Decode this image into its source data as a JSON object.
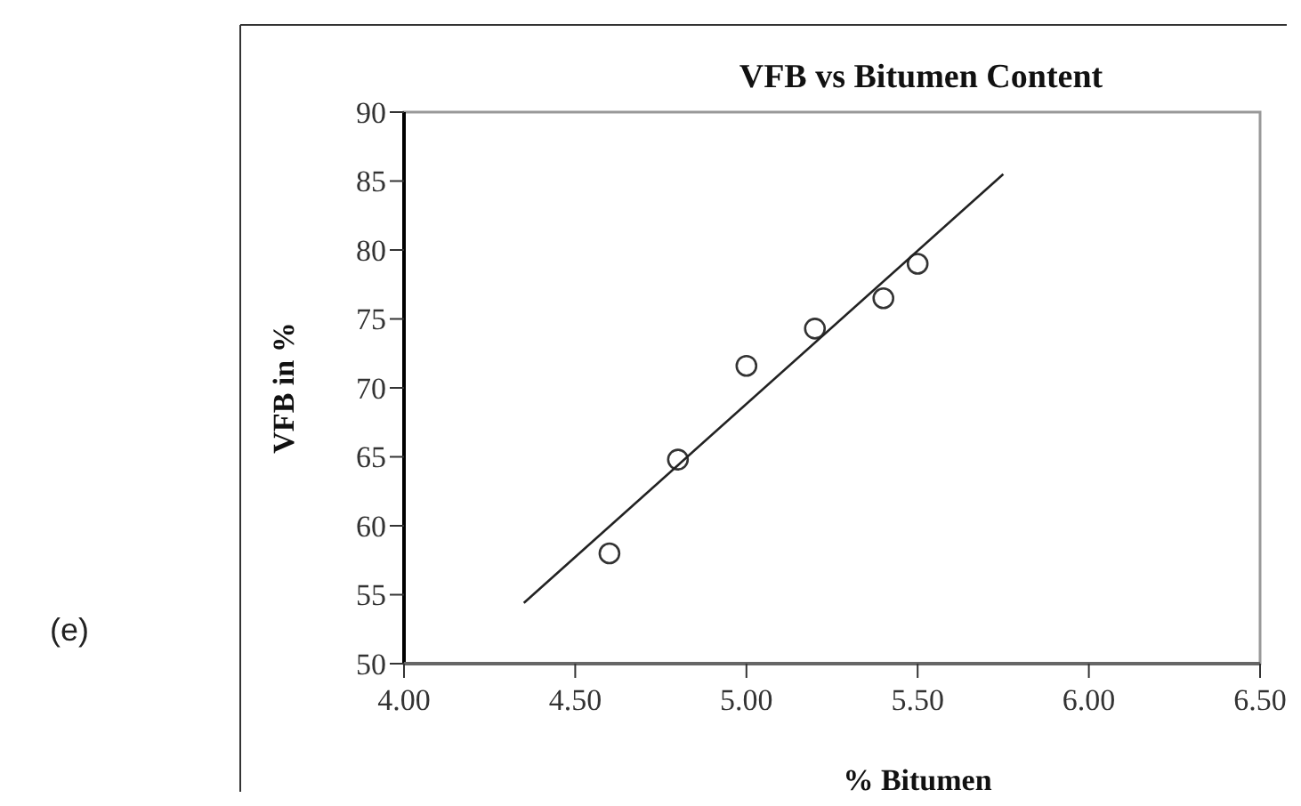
{
  "chart_data": {
    "type": "scatter",
    "title": "VFB vs Bitumen Content",
    "xlabel": "% Bitumen",
    "ylabel": "VFB in %",
    "xlim": [
      4.0,
      6.5
    ],
    "xticks": [
      {
        "value": 4.0,
        "label": "4.00"
      },
      {
        "value": 4.5,
        "label": "4.50"
      },
      {
        "value": 5.0,
        "label": "5.00"
      },
      {
        "value": 5.5,
        "label": "5.50"
      },
      {
        "value": 6.0,
        "label": "6.00"
      },
      {
        "value": 6.5,
        "label": "6.50"
      }
    ],
    "ylim": [
      50,
      90
    ],
    "yticks": [
      50,
      55,
      60,
      65,
      70,
      75,
      80,
      85,
      90
    ],
    "grid": false,
    "series": [
      {
        "color": "#333333",
        "marker": "circle",
        "x": [
          4.6,
          4.8,
          5.0,
          5.2,
          5.4,
          5.5
        ],
        "values": [
          58,
          64.8,
          71.6,
          74.3,
          76.5,
          79
        ]
      },
      {
        "type": "line",
        "color": "#222222",
        "marker": "none",
        "x": [
          4.35,
          5.75
        ],
        "values": [
          54.4,
          85.5
        ],
        "line_style": "solid"
      }
    ],
    "annotations": [
      "(e)"
    ]
  }
}
